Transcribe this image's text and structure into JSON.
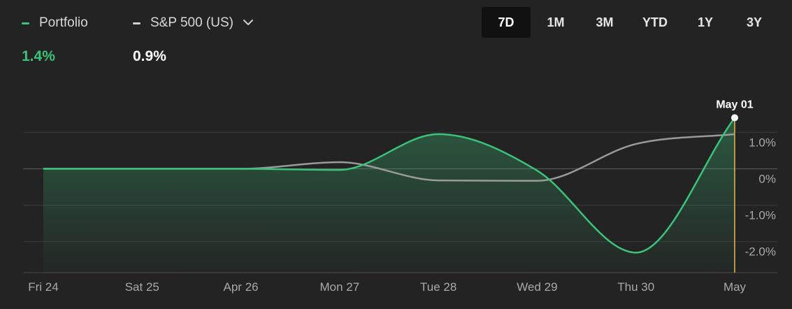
{
  "legend": {
    "portfolio": {
      "label": "Portfolio",
      "value": "1.4%",
      "color": "#3cc37a"
    },
    "benchmark": {
      "label": "S&P 500 (US)",
      "value": "0.9%",
      "color": "#d0d0d0",
      "dropdown_icon": "chevron-down-icon"
    }
  },
  "ranges": [
    {
      "label": "7D",
      "active": true
    },
    {
      "label": "1M",
      "active": false
    },
    {
      "label": "3M",
      "active": false
    },
    {
      "label": "YTD",
      "active": false
    },
    {
      "label": "1Y",
      "active": false
    },
    {
      "label": "3Y",
      "active": false
    }
  ],
  "chart_data": {
    "type": "line",
    "x": [
      "Fri 24",
      "Sat 25",
      "Apr 26",
      "Mon 27",
      "Tue 28",
      "Wed 29",
      "Thu 30",
      "May"
    ],
    "y_ticks": [
      1.0,
      0.0,
      -1.0,
      -2.0
    ],
    "y_tick_labels": [
      "1.0%",
      "0%",
      "-1.0%",
      "-2.0%"
    ],
    "ylim": [
      -2.85,
      1.6
    ],
    "grid": true,
    "fill_under_series": "Portfolio",
    "hover": {
      "label": "May 01",
      "x": 7,
      "value": 1.4
    },
    "series": [
      {
        "name": "Portfolio",
        "color": "#3cc37a",
        "points": [
          [
            0,
            0.0
          ],
          [
            1,
            0.0
          ],
          [
            2,
            0.0
          ],
          [
            3,
            -0.03
          ],
          [
            4,
            0.95
          ],
          [
            5,
            -0.05
          ],
          [
            6,
            -2.3
          ],
          [
            7,
            1.4
          ]
        ]
      },
      {
        "name": "S&P 500 (US)",
        "color": "#9a9a9a",
        "points": [
          [
            0,
            0.0
          ],
          [
            1,
            0.0
          ],
          [
            2,
            0.0
          ],
          [
            3,
            0.18
          ],
          [
            4,
            -0.32
          ],
          [
            5,
            -0.33
          ],
          [
            6,
            0.68
          ],
          [
            7,
            0.95
          ]
        ]
      }
    ]
  }
}
